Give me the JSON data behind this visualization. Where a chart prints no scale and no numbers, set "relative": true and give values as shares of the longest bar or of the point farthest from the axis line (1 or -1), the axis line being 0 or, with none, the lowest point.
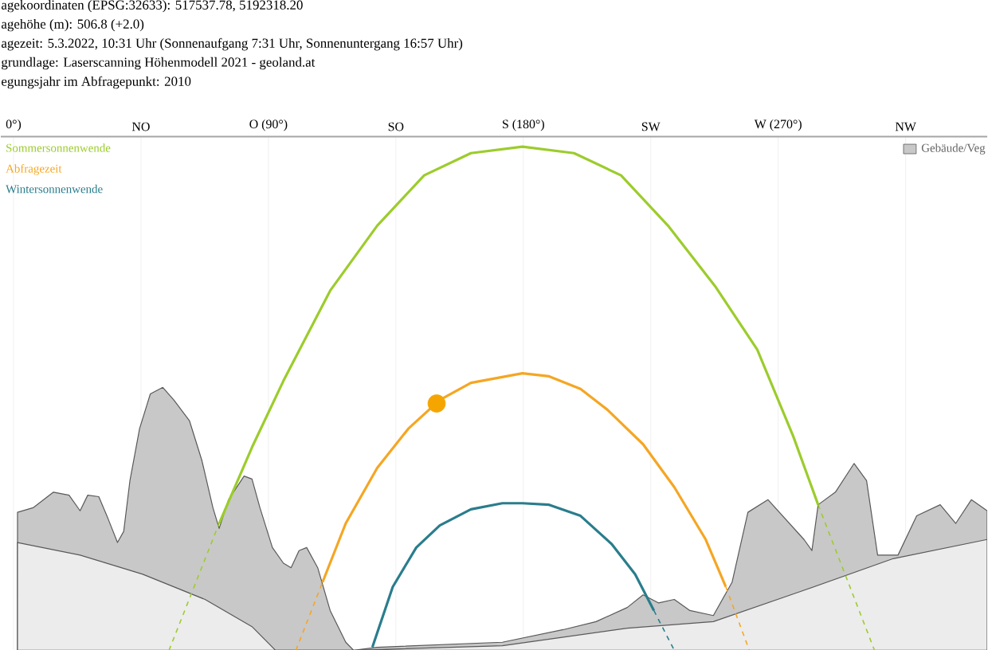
{
  "chart_data": {
    "type": "line",
    "relative": true,
    "grid": true,
    "annotations": [
      "agekoordinaten (EPSG:32633): 517537.78, 5192318.20",
      "agehöhe (m): 506.8 (+2.0)",
      "agezeit: 5.3.2022, 10:31 Uhr (Sonnenaufgang 7:31 Uhr,  Sonnenuntergang 16:57 Uhr)",
      "grundlage: Laserscanning Höhenmodell 2021 - geoland.at",
      "egungsjahr im Abfragepunkt: 2010"
    ],
    "xlim": [
      -4.5,
      343.8
    ],
    "xticks": [
      {
        "value": 0,
        "label": "0°)"
      },
      {
        "value": 45,
        "label": "NO"
      },
      {
        "value": 90,
        "label": "O (90°)"
      },
      {
        "value": 135,
        "label": "SO"
      },
      {
        "value": 180,
        "label": "S (180°)"
      },
      {
        "value": 225,
        "label": "SW"
      },
      {
        "value": 270,
        "label": "W (270°)"
      },
      {
        "value": 315,
        "label": "NW"
      }
    ],
    "series": [
      {
        "name": "Gebäude/Veg",
        "type": "area",
        "color": "#c8c8c8",
        "x": [
          1.4,
          6.9,
          14.1,
          19.6,
          23.5,
          26.2,
          30.1,
          33.4,
          36.7,
          38.9,
          41.1,
          44.5,
          48.3,
          52.7,
          56.6,
          62.1,
          66.5,
          70.4,
          72.6,
          75.9,
          81.4,
          84.2,
          87.0,
          91.4,
          95.3,
          98.0,
          100.8,
          103.5,
          107.4,
          111.8,
          117.3,
          120.1,
          128.4,
          172.6,
          194.1,
          205.7,
          216.7,
          222.3,
          227.8,
          233.3,
          238.8,
          247.1,
          253.7,
          259.3,
          266.4,
          279.1,
          281.9,
          284.1,
          290.2,
          296.8,
          301.2,
          305.1,
          312.3,
          318.9,
          327.2,
          332.7,
          338.2,
          343.8
        ],
        "values": [
          0.274,
          0.283,
          0.314,
          0.308,
          0.277,
          0.308,
          0.305,
          0.261,
          0.214,
          0.236,
          0.337,
          0.44,
          0.509,
          0.522,
          0.497,
          0.456,
          0.377,
          0.283,
          0.242,
          0.299,
          0.346,
          0.34,
          0.283,
          0.204,
          0.173,
          0.164,
          0.198,
          0.204,
          0.164,
          0.079,
          0.016,
          0,
          0.006,
          0.016,
          0.041,
          0.057,
          0.085,
          0.11,
          0.094,
          0.101,
          0.079,
          0.069,
          0.135,
          0.274,
          0.299,
          0.22,
          0.198,
          0.289,
          0.314,
          0.371,
          0.337,
          0.189,
          0.189,
          0.267,
          0.289,
          0.252,
          0.299,
          0.277
        ]
      },
      {
        "type": "area",
        "color": "#ececec",
        "x": [
          1.4,
          23.5,
          45.6,
          67.6,
          84.2,
          92.5,
          120.1,
          172.6,
          216.7,
          247.1,
          277.5,
          310.6,
          343.8
        ],
        "values": [
          0.214,
          0.189,
          0.151,
          0.101,
          0.047,
          0,
          0,
          0.009,
          0.044,
          0.057,
          0.116,
          0.182,
          0.22
        ]
      },
      {
        "name": "Sommersonnenwende",
        "color": "#9ccc2c",
        "line_style": "solid",
        "x": [
          72.6,
          84.2,
          95.3,
          111.8,
          128.4,
          145.0,
          161.5,
          179.7,
          197.9,
          214.5,
          231.1,
          247.7,
          262.6,
          275.3,
          284.1
        ],
        "values": [
          0.252,
          0.403,
          0.535,
          0.714,
          0.843,
          0.943,
          0.987,
          1.0,
          0.987,
          0.943,
          0.843,
          0.723,
          0.597,
          0.425,
          0.289
        ]
      },
      {
        "color": "#9ccc2c",
        "line_style": "dashed",
        "x": [
          54.9,
          72.6
        ],
        "values": [
          0,
          0.252
        ]
      },
      {
        "color": "#9ccc2c",
        "line_style": "dashed",
        "x": [
          284.1,
          304.0
        ],
        "values": [
          0.289,
          0
        ]
      },
      {
        "name": "Abfragezeit",
        "color": "#f5a623",
        "line_style": "solid",
        "x": [
          109.1,
          117.3,
          128.4,
          139.4,
          150.5,
          161.5,
          179.7,
          189.1,
          200.2,
          209.6,
          222.3,
          233.3,
          244.4,
          251.5
        ],
        "values": [
          0.135,
          0.252,
          0.362,
          0.44,
          0.497,
          0.531,
          0.55,
          0.544,
          0.519,
          0.478,
          0.409,
          0.324,
          0.22,
          0.126
        ]
      },
      {
        "color": "#f5a623",
        "line_style": "dashed",
        "x": [
          99.7,
          109.1
        ],
        "values": [
          0,
          0.135
        ]
      },
      {
        "color": "#f5a623",
        "line_style": "dashed",
        "x": [
          251.5,
          259.8
        ],
        "values": [
          0.126,
          0
        ]
      },
      {
        "name": "Wintersonnenwende",
        "color": "#2a7d8c",
        "line_style": "solid",
        "x": [
          126.7,
          133.9,
          142.2,
          150.5,
          161.5,
          172.6,
          179.7,
          189.1,
          200.2,
          211.2,
          219.5,
          226.1
        ],
        "values": [
          0.006,
          0.126,
          0.204,
          0.248,
          0.28,
          0.292,
          0.292,
          0.289,
          0.267,
          0.211,
          0.151,
          0.079
        ]
      },
      {
        "color": "#2a7d8c",
        "line_style": "dashed",
        "x": [
          226.1,
          233.3
        ],
        "values": [
          0.079,
          0
        ]
      },
      {
        "type": "scatter",
        "marker": "circle",
        "color": "#f5a500",
        "x": [
          149.4
        ],
        "values": [
          0.49
        ]
      }
    ]
  }
}
